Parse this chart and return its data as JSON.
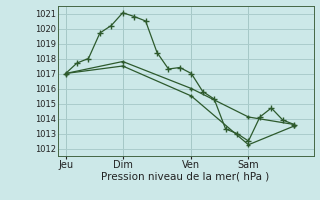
{
  "background_color": "#cce8e8",
  "grid_color": "#aacccc",
  "line_color": "#2d5a2d",
  "xlabel": "Pression niveau de la mer( hPa )",
  "ylim": [
    1011.5,
    1021.5
  ],
  "yticks": [
    1012,
    1013,
    1014,
    1015,
    1016,
    1017,
    1018,
    1019,
    1020,
    1021
  ],
  "day_labels": [
    "Jeu",
    "Dim",
    "Ven",
    "Sam"
  ],
  "day_positions": [
    0.5,
    5.5,
    11.5,
    16.5
  ],
  "xlim": [
    -0.2,
    22.2
  ],
  "series1_x": [
    0.5,
    1.5,
    2.5,
    3.5,
    4.5,
    5.5,
    6.5,
    7.5,
    8.5,
    9.5,
    10.5,
    11.5,
    12.5,
    13.5,
    14.5,
    15.5,
    16.5,
    17.5,
    18.5,
    19.5,
    20.5
  ],
  "series1_y": [
    1017.0,
    1017.7,
    1018.0,
    1019.7,
    1020.2,
    1021.05,
    1020.8,
    1020.5,
    1018.4,
    1017.3,
    1017.4,
    1017.0,
    1015.8,
    1015.3,
    1013.3,
    1013.0,
    1012.5,
    1014.1,
    1014.7,
    1013.9,
    1013.6
  ],
  "series2_x": [
    0.5,
    5.5,
    11.5,
    16.5,
    20.5
  ],
  "series2_y": [
    1017.0,
    1017.8,
    1016.0,
    1014.1,
    1013.6
  ],
  "series3_x": [
    0.5,
    5.5,
    11.5,
    16.5,
    20.5
  ],
  "series3_y": [
    1017.0,
    1017.5,
    1015.5,
    1012.25,
    1013.5
  ]
}
